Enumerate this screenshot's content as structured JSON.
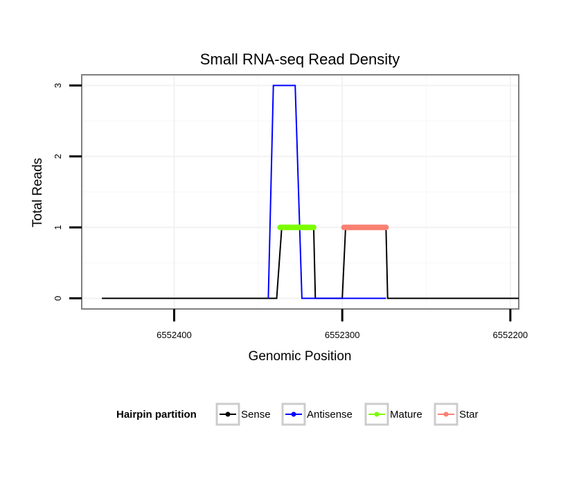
{
  "chart_data": {
    "type": "line",
    "title": "Small RNA-seq Read Density",
    "xlabel": "Genomic Position",
    "ylabel": "Total Reads",
    "xlim": [
      6552455,
      6552195
    ],
    "x_reversed": true,
    "ylim": [
      -0.15,
      3.15
    ],
    "xticks": [
      6552400,
      6552300,
      6552200
    ],
    "xtick_labels": [
      "6552400",
      "6552300",
      "6552200"
    ],
    "yticks": [
      0,
      1,
      2,
      3
    ],
    "ytick_labels": [
      "0",
      "1",
      "2",
      "3"
    ],
    "grid": true,
    "legend_position": "bottom",
    "legend_title": "Hairpin partition",
    "series": [
      {
        "name": "Sense",
        "color": "#000000",
        "kind": "line",
        "x": [
          6552443,
          6552339,
          6552336,
          6552317,
          6552316,
          6552300,
          6552298,
          6552274,
          6552273,
          6552195
        ],
        "y": [
          0,
          0,
          1,
          1,
          0,
          0,
          1,
          1,
          0,
          0
        ]
      },
      {
        "name": "Antisense",
        "color": "#0000ff",
        "kind": "line",
        "x": [
          6552344,
          6552341,
          6552328,
          6552324,
          6552274
        ],
        "y": [
          0,
          3,
          3,
          0,
          0
        ]
      },
      {
        "name": "Mature",
        "color": "#7cfc00",
        "kind": "segment",
        "x": [
          6552337,
          6552317
        ],
        "y": [
          1,
          1
        ]
      },
      {
        "name": "Star",
        "color": "#fa8072",
        "kind": "segment",
        "x": [
          6552299,
          6552274
        ],
        "y": [
          1,
          1
        ]
      }
    ]
  }
}
